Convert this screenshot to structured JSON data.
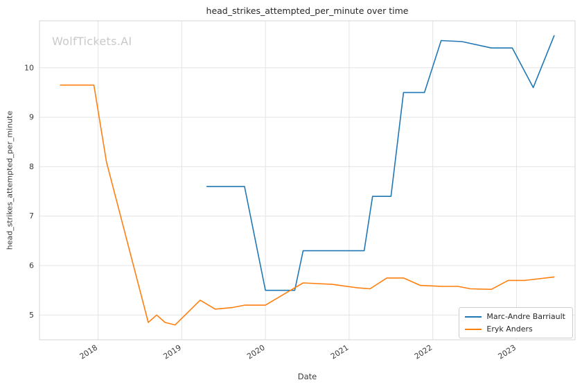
{
  "title": "head_strikes_attempted_per_minute over time",
  "watermark": "WolfTickets.AI",
  "xlabel": "Date",
  "ylabel": "head_strikes_attempted_per_minute",
  "chart_data": {
    "type": "line",
    "title": "head_strikes_attempted_per_minute over time",
    "xlabel": "Date",
    "ylabel": "head_strikes_attempted_per_minute",
    "xlim": [
      2017.3,
      2023.7
    ],
    "ylim": [
      4.5,
      10.95
    ],
    "x_ticks": [
      2018,
      2019,
      2020,
      2021,
      2022,
      2023
    ],
    "y_ticks": [
      5,
      6,
      7,
      8,
      9,
      10
    ],
    "grid": true,
    "legend_position": "lower right",
    "series": [
      {
        "name": "Marc-Andre Barriault",
        "color": "#1f77b4",
        "x": [
          2019.3,
          2019.75,
          2020.0,
          2020.35,
          2020.45,
          2021.18,
          2021.28,
          2021.5,
          2021.65,
          2021.9,
          2022.1,
          2022.35,
          2022.7,
          2022.95,
          2023.2,
          2023.45
        ],
        "y": [
          7.6,
          7.6,
          5.5,
          5.5,
          6.3,
          6.3,
          7.4,
          7.4,
          9.5,
          9.5,
          10.55,
          10.53,
          10.4,
          10.4,
          9.6,
          10.65
        ]
      },
      {
        "name": "Eryk Anders",
        "color": "#ff7f0e",
        "x": [
          2017.55,
          2017.95,
          2018.1,
          2018.6,
          2018.7,
          2018.8,
          2018.92,
          2019.22,
          2019.4,
          2019.6,
          2019.75,
          2020.0,
          2020.25,
          2020.45,
          2020.8,
          2021.1,
          2021.25,
          2021.45,
          2021.65,
          2021.85,
          2022.1,
          2022.3,
          2022.45,
          2022.7,
          2022.9,
          2023.1,
          2023.45
        ],
        "y": [
          9.65,
          9.65,
          8.1,
          4.85,
          5.0,
          4.85,
          4.8,
          5.3,
          5.12,
          5.15,
          5.2,
          5.2,
          5.45,
          5.65,
          5.62,
          5.55,
          5.53,
          5.75,
          5.75,
          5.6,
          5.58,
          5.58,
          5.53,
          5.52,
          5.7,
          5.7,
          5.77
        ]
      }
    ]
  }
}
